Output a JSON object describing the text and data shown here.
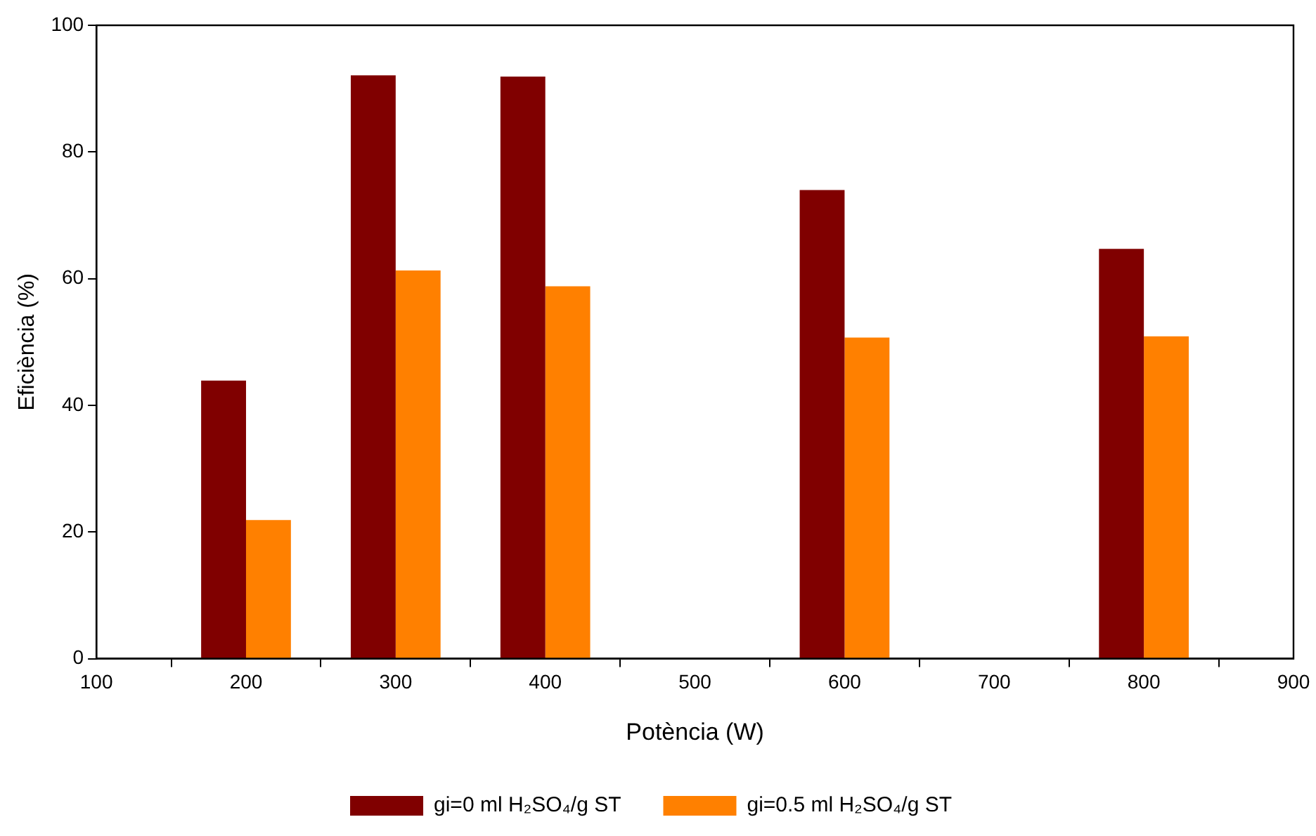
{
  "chart_data": {
    "type": "bar",
    "xlabel": "Potència (W)",
    "ylabel": "Eficiència (%)",
    "x": [
      200,
      300,
      400,
      600,
      800
    ],
    "series": [
      {
        "name": "gi=0 ml H₂SO₄/g ST",
        "color": "#800000",
        "values": [
          43.9,
          92.1,
          91.9,
          74.0,
          64.7
        ]
      },
      {
        "name": "gi=0.5 ml H₂SO₄/g ST",
        "color": "#ff8000",
        "values": [
          21.9,
          61.3,
          58.8,
          50.7,
          50.9
        ]
      }
    ],
    "xlim": [
      100,
      900
    ],
    "xticks": [
      100,
      200,
      300,
      400,
      500,
      600,
      700,
      800,
      900
    ],
    "ylim": [
      0,
      100
    ],
    "yticks": [
      0,
      20,
      40,
      60,
      80,
      100
    ],
    "grid": false,
    "legend": "bottom"
  }
}
